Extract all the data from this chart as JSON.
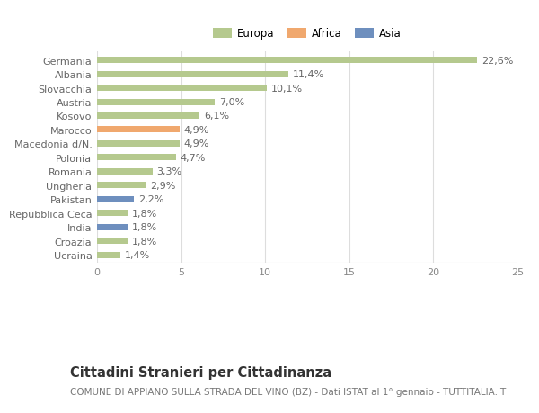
{
  "categories": [
    "Germania",
    "Albania",
    "Slovacchia",
    "Austria",
    "Kosovo",
    "Marocco",
    "Macedonia d/N.",
    "Polonia",
    "Romania",
    "Ungheria",
    "Pakistan",
    "Repubblica Ceca",
    "India",
    "Croazia",
    "Ucraina"
  ],
  "values": [
    22.6,
    11.4,
    10.1,
    7.0,
    6.1,
    4.9,
    4.9,
    4.7,
    3.3,
    2.9,
    2.2,
    1.8,
    1.8,
    1.8,
    1.4
  ],
  "labels": [
    "22,6%",
    "11,4%",
    "10,1%",
    "7,0%",
    "6,1%",
    "4,9%",
    "4,9%",
    "4,7%",
    "3,3%",
    "2,9%",
    "2,2%",
    "1,8%",
    "1,8%",
    "1,8%",
    "1,4%"
  ],
  "continents": [
    "Europa",
    "Europa",
    "Europa",
    "Europa",
    "Europa",
    "Africa",
    "Europa",
    "Europa",
    "Europa",
    "Europa",
    "Asia",
    "Europa",
    "Asia",
    "Europa",
    "Europa"
  ],
  "colors": {
    "Europa": "#b5c98e",
    "Africa": "#f0a86e",
    "Asia": "#6e8fbe"
  },
  "legend_labels": [
    "Europa",
    "Africa",
    "Asia"
  ],
  "legend_colors": [
    "#b5c98e",
    "#f0a86e",
    "#6e8fbe"
  ],
  "xlim": [
    0,
    25
  ],
  "xticks": [
    0,
    5,
    10,
    15,
    20,
    25
  ],
  "title1": "Cittadini Stranieri per Cittadinanza",
  "title2": "COMUNE DI APPIANO SULLA STRADA DEL VINO (BZ) - Dati ISTAT al 1° gennaio - TUTTITALIA.IT",
  "bg_color": "#ffffff",
  "bar_height": 0.45,
  "label_fontsize": 8,
  "tick_fontsize": 8,
  "ytick_fontsize": 8,
  "title1_fontsize": 10.5,
  "title2_fontsize": 7.5
}
